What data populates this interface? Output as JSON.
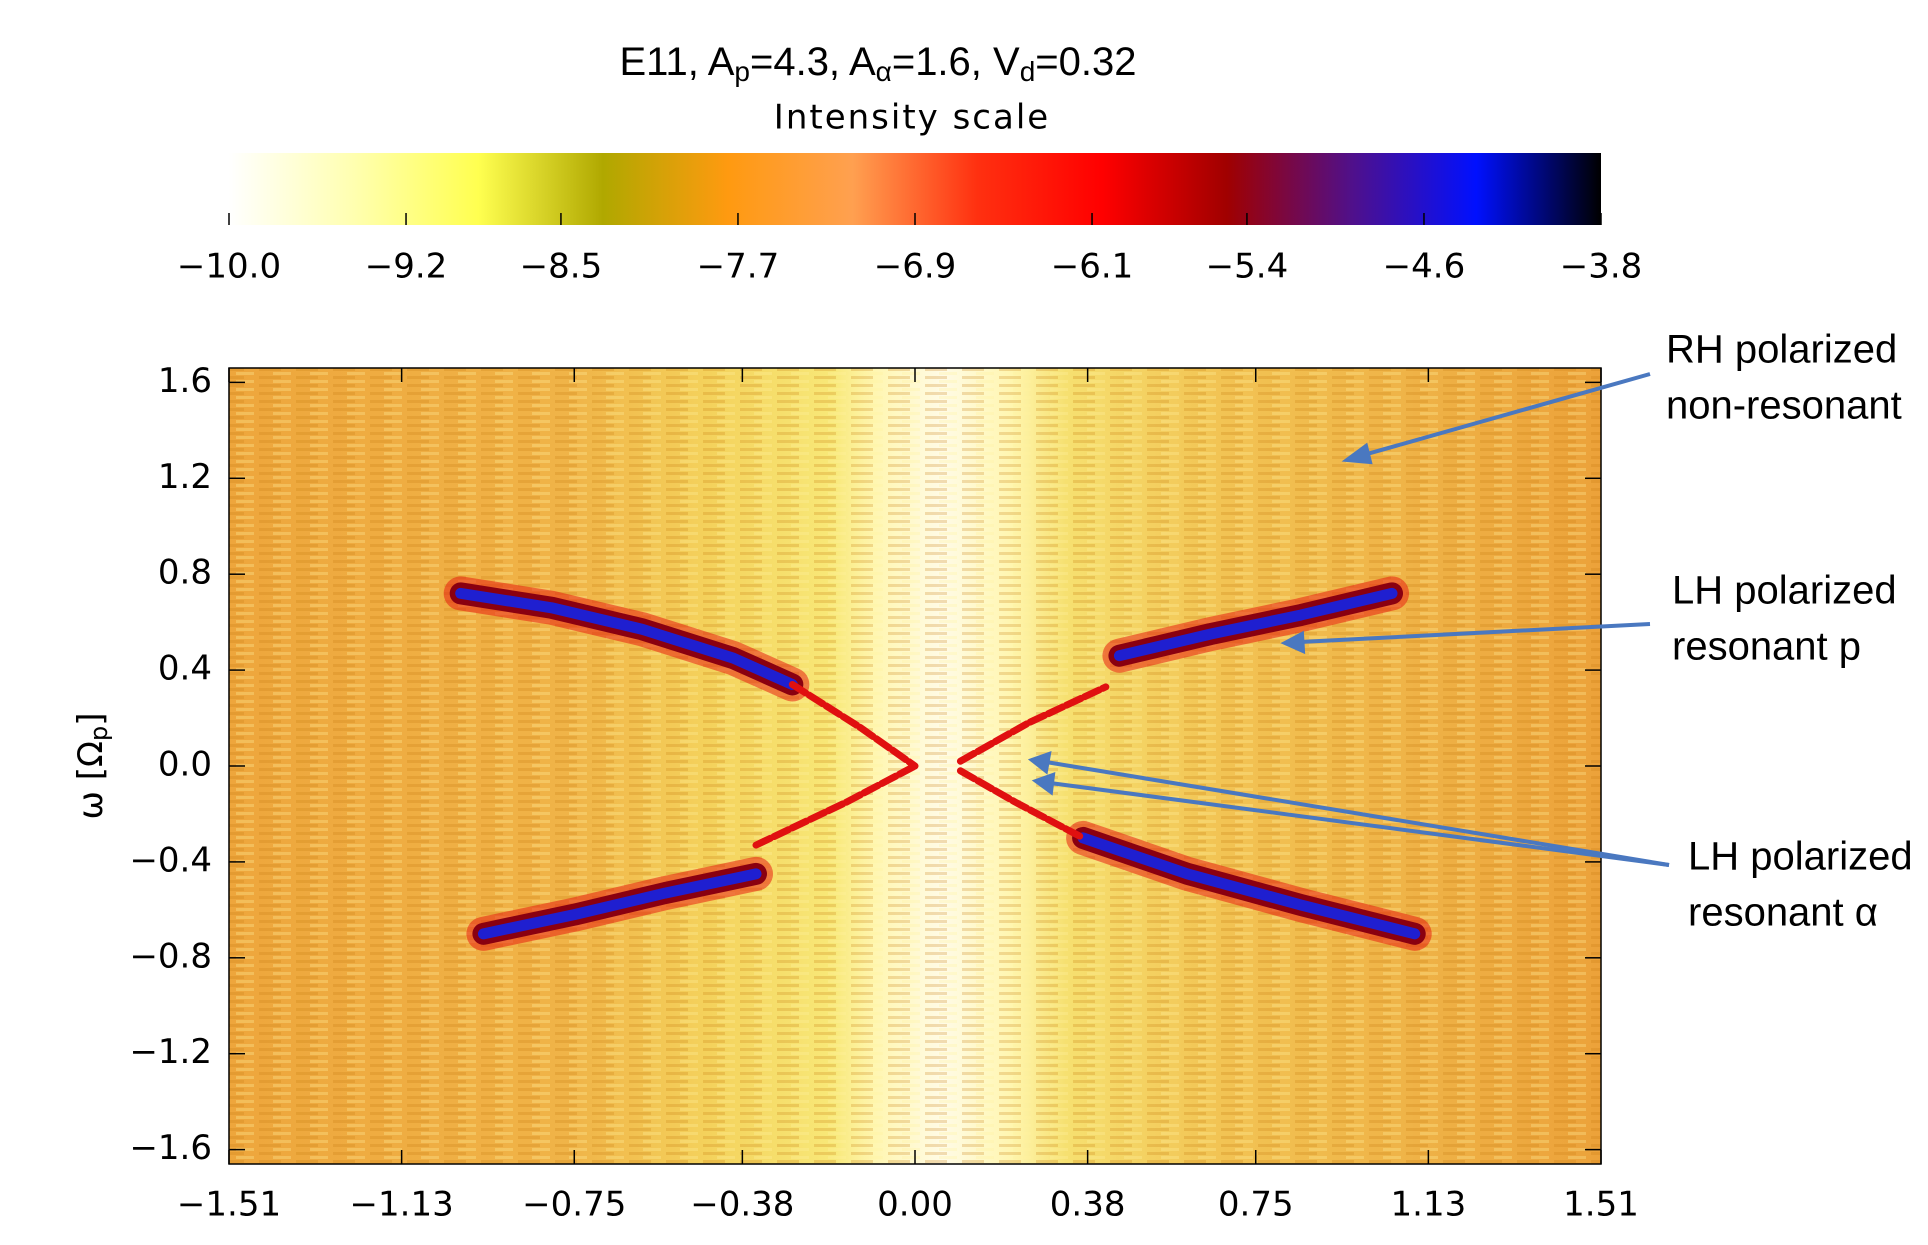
{
  "chart_data": {
    "type": "heatmap",
    "title_parts": [
      "E11, A",
      "p",
      "=4.3, A",
      "α",
      "=1.6, V",
      "d",
      "=0.32"
    ],
    "colorbar": {
      "title": "Intensity scale",
      "lim": [
        -10.0,
        -3.8
      ],
      "ticks": [
        {
          "value": -10.0,
          "label": "−10.0"
        },
        {
          "value": -9.2,
          "label": "−9.2"
        },
        {
          "value": -8.5,
          "label": "−8.5"
        },
        {
          "value": -7.7,
          "label": "−7.7"
        },
        {
          "value": -6.9,
          "label": "−6.9"
        },
        {
          "value": -6.1,
          "label": "−6.1"
        },
        {
          "value": -5.4,
          "label": "−5.4"
        },
        {
          "value": -4.6,
          "label": "−4.6"
        },
        {
          "value": -3.8,
          "label": "−3.8"
        }
      ],
      "colors": [
        "#ffffff",
        "#ffffb0",
        "#ffff50",
        "#b0a800",
        "#ff9a10",
        "#ffa050",
        "#ff3010",
        "#ff0000",
        "#a00000",
        "#50108a",
        "#0010ff",
        "#000000"
      ]
    },
    "y_label_parts": [
      "ω [Ω",
      "p",
      "]"
    ],
    "xlim": [
      -1.51,
      1.51
    ],
    "ylim": [
      -1.66,
      1.66
    ],
    "xticks": [
      {
        "value": -1.51,
        "label": "−1.51"
      },
      {
        "value": -1.13,
        "label": "−1.13"
      },
      {
        "value": -0.75,
        "label": "−0.75"
      },
      {
        "value": -0.38,
        "label": "−0.38"
      },
      {
        "value": 0,
        "label": "0.00"
      },
      0.38,
      0.75,
      1.13,
      1.51
    ],
    "yticks": [
      1.6,
      1.2,
      0.8,
      0.4,
      {
        "value": 0,
        "label": "0.0"
      },
      {
        "value": -0.4,
        "label": "−0.4"
      },
      {
        "value": -0.8,
        "label": "−0.8"
      },
      {
        "value": -1.2,
        "label": "−1.2"
      },
      {
        "value": -1.6,
        "label": "−1.6"
      }
    ],
    "series": [
      {
        "color": "#1f1fd0",
        "x": [
          -1.0,
          -0.8,
          -0.6,
          -0.4,
          -0.27
        ],
        "values": [
          0.72,
          0.66,
          0.57,
          0.45,
          0.34
        ]
      },
      {
        "color": "#e01010",
        "x": [
          -0.27,
          -0.12,
          0.0
        ],
        "values": [
          0.34,
          0.16,
          0.0
        ]
      },
      {
        "color": "#1f1fd0",
        "x": [
          -0.95,
          -0.75,
          -0.55,
          -0.35
        ],
        "values": [
          -0.7,
          -0.62,
          -0.53,
          -0.45
        ]
      },
      {
        "color": "#e01010",
        "x": [
          -0.35,
          -0.15,
          0.0
        ],
        "values": [
          -0.33,
          -0.15,
          0.0
        ]
      },
      {
        "color": "#1f1fd0",
        "x": [
          0.45,
          0.65,
          0.85,
          1.05
        ],
        "values": [
          0.46,
          0.55,
          0.63,
          0.72
        ]
      },
      {
        "color": "#e01010",
        "x": [
          0.1,
          0.25,
          0.42
        ],
        "values": [
          0.02,
          0.18,
          0.33
        ]
      },
      {
        "color": "#1f1fd0",
        "x": [
          0.37,
          0.6,
          0.85,
          1.1
        ],
        "values": [
          -0.3,
          -0.45,
          -0.58,
          -0.7
        ]
      },
      {
        "color": "#e01010",
        "x": [
          0.1,
          0.22,
          0.37
        ],
        "values": [
          -0.02,
          -0.15,
          -0.3
        ]
      }
    ],
    "annotations": [
      [
        "RH polarized",
        "non-resonant"
      ],
      [
        "LH polarized",
        "resonant p"
      ],
      [
        "LH polarized",
        "resonant α"
      ]
    ]
  }
}
